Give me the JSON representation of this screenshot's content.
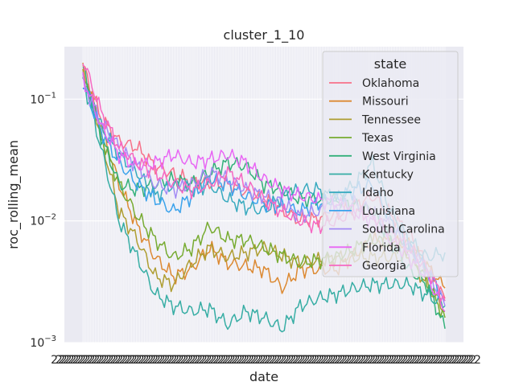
{
  "chart_data": {
    "type": "line",
    "title": "cluster_1_10",
    "xlabel": "date",
    "ylabel": "roc_rolling_mean",
    "yscale": "log",
    "ylim": [
      0.001,
      0.27
    ],
    "yticks": [
      {
        "value": 0.001,
        "base": "10",
        "exp": "−3"
      },
      {
        "value": 0.01,
        "base": "10",
        "exp": "−2"
      },
      {
        "value": 0.1,
        "base": "10",
        "exp": "−1"
      }
    ],
    "x_tick_labels_overlapping": "22",
    "grid": true,
    "legend": {
      "title": "state",
      "position": "upper right"
    },
    "x_index_range": [
      0,
      100
    ],
    "series": [
      {
        "name": "Oklahoma",
        "color": "#f77189",
        "x": [
          0,
          5,
          10,
          15,
          20,
          30,
          40,
          50,
          60,
          70,
          80,
          90,
          100
        ],
        "y": [
          0.19,
          0.07,
          0.045,
          0.04,
          0.028,
          0.021,
          0.02,
          0.015,
          0.01,
          0.011,
          0.016,
          0.008,
          0.0023
        ]
      },
      {
        "name": "Missouri",
        "color": "#dc8932",
        "x": [
          0,
          5,
          10,
          15,
          20,
          25,
          30,
          35,
          40,
          50,
          55,
          60,
          70,
          80,
          90,
          100
        ],
        "y": [
          0.17,
          0.06,
          0.02,
          0.009,
          0.005,
          0.0035,
          0.004,
          0.006,
          0.0045,
          0.004,
          0.0028,
          0.004,
          0.004,
          0.007,
          0.0065,
          0.0028
        ]
      },
      {
        "name": "Tennessee",
        "color": "#ae9d31",
        "x": [
          0,
          5,
          10,
          15,
          20,
          25,
          30,
          35,
          40,
          50,
          60,
          70,
          80,
          90,
          100
        ],
        "y": [
          0.17,
          0.05,
          0.012,
          0.007,
          0.0035,
          0.003,
          0.0045,
          0.006,
          0.005,
          0.006,
          0.0045,
          0.005,
          0.005,
          0.005,
          0.0018
        ]
      },
      {
        "name": "Texas",
        "color": "#77ab31",
        "x": [
          0,
          5,
          10,
          15,
          20,
          25,
          30,
          35,
          40,
          45,
          50,
          60,
          70,
          80,
          90,
          100
        ],
        "y": [
          0.16,
          0.05,
          0.02,
          0.011,
          0.007,
          0.005,
          0.006,
          0.009,
          0.007,
          0.007,
          0.006,
          0.0045,
          0.005,
          0.007,
          0.006,
          0.0016
        ]
      },
      {
        "name": "West Virginia",
        "color": "#33b07a",
        "x": [
          0,
          5,
          10,
          15,
          20,
          25,
          30,
          35,
          40,
          45,
          50,
          55,
          60,
          70,
          80,
          90,
          95,
          100
        ],
        "y": [
          0.18,
          0.05,
          0.02,
          0.018,
          0.02,
          0.022,
          0.02,
          0.025,
          0.03,
          0.028,
          0.02,
          0.018,
          0.015,
          0.015,
          0.012,
          0.004,
          0.003,
          0.0013
        ]
      },
      {
        "name": "Kentucky",
        "color": "#36ada4",
        "x": [
          0,
          5,
          10,
          15,
          20,
          25,
          30,
          35,
          40,
          45,
          50,
          55,
          60,
          65,
          70,
          75,
          80,
          90,
          100
        ],
        "y": [
          0.15,
          0.04,
          0.01,
          0.005,
          0.0025,
          0.002,
          0.0018,
          0.0019,
          0.0014,
          0.0018,
          0.0016,
          0.0013,
          0.002,
          0.0023,
          0.0025,
          0.0028,
          0.003,
          0.003,
          0.002
        ]
      },
      {
        "name": "Idaho",
        "color": "#38aabf",
        "x": [
          0,
          5,
          10,
          15,
          20,
          25,
          30,
          35,
          40,
          45,
          50,
          55,
          60,
          65,
          70,
          75,
          80,
          85,
          90,
          95,
          100
        ],
        "y": [
          0.14,
          0.06,
          0.035,
          0.025,
          0.016,
          0.02,
          0.018,
          0.02,
          0.015,
          0.013,
          0.012,
          0.016,
          0.018,
          0.018,
          0.015,
          0.02,
          0.03,
          0.012,
          0.007,
          0.005,
          0.0055
        ]
      },
      {
        "name": "Louisiana",
        "color": "#3ba3ec",
        "x": [
          0,
          5,
          10,
          15,
          20,
          25,
          30,
          35,
          40,
          45,
          50,
          55,
          60,
          65,
          70,
          75,
          80,
          85,
          90,
          95,
          100
        ],
        "y": [
          0.13,
          0.055,
          0.03,
          0.02,
          0.015,
          0.012,
          0.016,
          0.022,
          0.02,
          0.016,
          0.014,
          0.013,
          0.012,
          0.014,
          0.015,
          0.018,
          0.02,
          0.01,
          0.006,
          0.004,
          0.0022
        ]
      },
      {
        "name": "South Carolina",
        "color": "#a48cf4",
        "x": [
          0,
          5,
          10,
          15,
          20,
          25,
          30,
          35,
          40,
          45,
          50,
          55,
          60,
          65,
          70,
          75,
          80,
          85,
          90,
          95,
          100
        ],
        "y": [
          0.14,
          0.065,
          0.04,
          0.028,
          0.02,
          0.018,
          0.02,
          0.025,
          0.022,
          0.018,
          0.016,
          0.014,
          0.011,
          0.012,
          0.013,
          0.014,
          0.012,
          0.009,
          0.006,
          0.004,
          0.002
        ]
      },
      {
        "name": "Florida",
        "color": "#e866f4",
        "x": [
          0,
          5,
          10,
          15,
          20,
          25,
          30,
          35,
          40,
          45,
          50,
          55,
          60,
          65,
          70,
          75,
          80,
          85,
          90,
          95,
          100
        ],
        "y": [
          0.15,
          0.06,
          0.035,
          0.028,
          0.03,
          0.035,
          0.03,
          0.032,
          0.035,
          0.03,
          0.022,
          0.018,
          0.016,
          0.015,
          0.014,
          0.012,
          0.01,
          0.007,
          0.005,
          0.0035,
          0.0018
        ]
      },
      {
        "name": "Georgia",
        "color": "#f668c2",
        "x": [
          0,
          5,
          10,
          15,
          20,
          25,
          30,
          35,
          40,
          45,
          50,
          55,
          60,
          65,
          70,
          75,
          80,
          85,
          90,
          95,
          100
        ],
        "y": [
          0.21,
          0.08,
          0.04,
          0.03,
          0.025,
          0.02,
          0.018,
          0.02,
          0.025,
          0.02,
          0.015,
          0.012,
          0.01,
          0.009,
          0.01,
          0.012,
          0.011,
          0.008,
          0.006,
          0.004,
          0.0022
        ]
      }
    ]
  }
}
